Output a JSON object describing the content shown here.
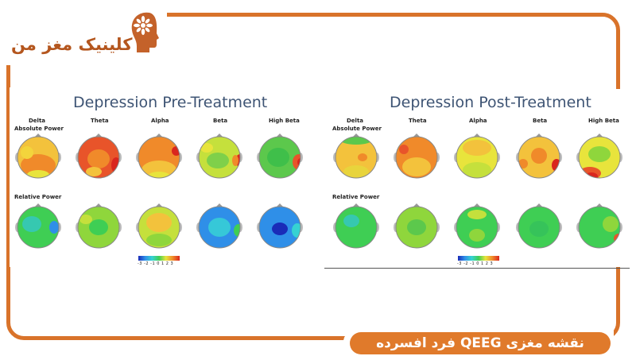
{
  "brand": {
    "name": "کلینیک مغز من",
    "colors": {
      "accent": "#d9732a",
      "brand_text": "#b4561e",
      "caption_bg": "#e07a2b"
    }
  },
  "caption": {
    "text": "نقشه مغزی QEEG فرد افسرده"
  },
  "panels": [
    {
      "title": "Depression Pre-Treatment",
      "columns": [
        "Delta",
        "Theta",
        "Alpha",
        "Beta",
        "High Beta"
      ],
      "rows": [
        "Absolute Power",
        "Relative Power"
      ],
      "scale": {
        "min": -3,
        "max": 3,
        "ticks": "-3 -2 -1 0 1 2 3"
      }
    },
    {
      "title": "Depression Post-Treatment",
      "columns": [
        "Delta",
        "Theta",
        "Alpha",
        "Beta",
        "High Beta"
      ],
      "rows": [
        "Absolute Power",
        "Relative Power"
      ],
      "scale": {
        "min": -3,
        "max": 3,
        "ticks": "-3 -2 -1 0 1 2 3"
      }
    }
  ]
}
